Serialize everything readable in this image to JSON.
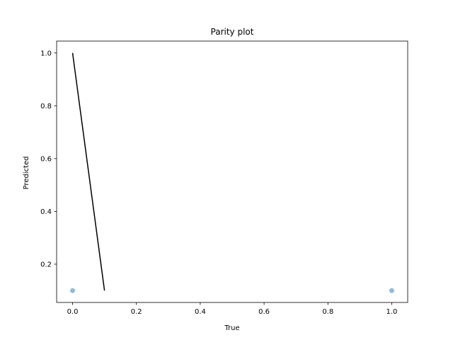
{
  "chart_data": {
    "type": "scatter",
    "title": "Parity plot",
    "xlabel": "True",
    "ylabel": "Predicted",
    "xlim": [
      -0.05,
      1.05
    ],
    "ylim": [
      0.055,
      1.045
    ],
    "xticks": [
      0.0,
      0.2,
      0.4,
      0.6,
      0.8,
      1.0
    ],
    "xtick_labels": [
      "0.0",
      "0.2",
      "0.4",
      "0.6",
      "0.8",
      "1.0"
    ],
    "yticks": [
      0.2,
      0.4,
      0.6,
      0.8,
      1.0
    ],
    "ytick_labels": [
      "0.2",
      "0.4",
      "0.6",
      "0.8",
      "1.0"
    ],
    "grid": false,
    "series": [
      {
        "kind": "scatter",
        "color": "#8fbcdc",
        "points": [
          {
            "x": 0.0,
            "y": 0.1
          },
          {
            "x": 1.0,
            "y": 0.1
          }
        ]
      },
      {
        "kind": "line",
        "color": "#000000",
        "points": [
          {
            "x": 0.0,
            "y": 1.0
          },
          {
            "x": 0.1,
            "y": 0.1
          }
        ]
      }
    ]
  }
}
